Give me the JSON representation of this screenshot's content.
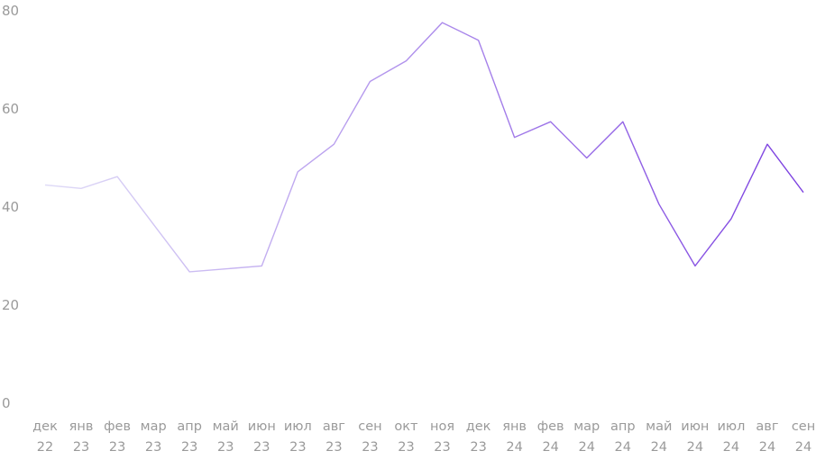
{
  "chart_data": {
    "type": "line",
    "title": "",
    "xlabel": "",
    "ylabel": "",
    "ylim": [
      0,
      80
    ],
    "y_ticks": [
      "0",
      "20",
      "40",
      "60",
      "80"
    ],
    "grid": false,
    "legend": "none",
    "categories": [
      [
        "дек",
        "22"
      ],
      [
        "янв",
        "23"
      ],
      [
        "фев",
        "23"
      ],
      [
        "мар",
        "23"
      ],
      [
        "апр",
        "23"
      ],
      [
        "май",
        "23"
      ],
      [
        "июн",
        "23"
      ],
      [
        "июл",
        "23"
      ],
      [
        "авг",
        "23"
      ],
      [
        "сен",
        "23"
      ],
      [
        "окт",
        "23"
      ],
      [
        "ноя",
        "23"
      ],
      [
        "дек",
        "23"
      ],
      [
        "янв",
        "24"
      ],
      [
        "фев",
        "24"
      ],
      [
        "мар",
        "24"
      ],
      [
        "апр",
        "24"
      ],
      [
        "май",
        "24"
      ],
      [
        "июн",
        "24"
      ],
      [
        "июл",
        "24"
      ],
      [
        "авг",
        "24"
      ],
      [
        "сен",
        "24"
      ]
    ],
    "series": [
      {
        "values": [
          44.5,
          43.8,
          46.2,
          36.5,
          26.8,
          27.4,
          28.0,
          47.2,
          52.8,
          65.6,
          69.8,
          77.6,
          74.0,
          54.2,
          57.4,
          50.0,
          57.4,
          40.6,
          28.0,
          37.6,
          52.8,
          43.0
        ],
        "color_start": "#e0dcf7",
        "color_end": "#7b3fe0"
      }
    ]
  }
}
